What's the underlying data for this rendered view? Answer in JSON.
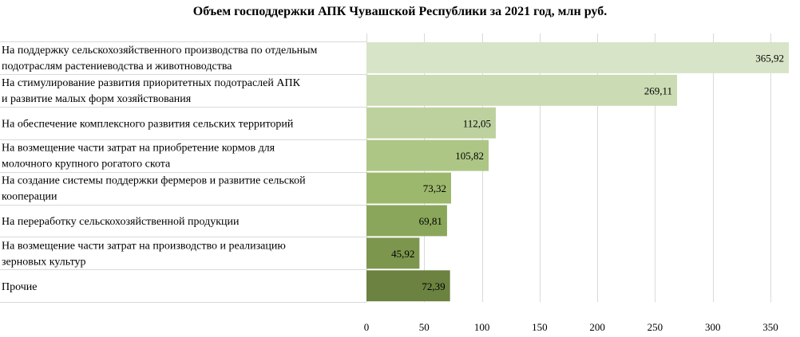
{
  "chart_data": {
    "type": "bar",
    "orientation": "horizontal",
    "title": "Объем господдержки АПК Чувашской Республики за 2021 год, млн руб.",
    "xlabel": "",
    "ylabel": "",
    "xlim": [
      0,
      365.92
    ],
    "x_ticks": [
      0,
      50,
      100,
      150,
      200,
      250,
      300,
      350
    ],
    "grid": true,
    "legend": "none",
    "categories": [
      [
        "На поддержку сельскохозяйственного производства по отдельным",
        "подотраслям растениеводства и животноводства"
      ],
      [
        "На стимулирование развития приоритетных подотраслей АПК",
        "и развитие малых форм хозяйствования"
      ],
      [
        "На обеспечение комплексного развития сельских территорий"
      ],
      [
        "На возмещение части затрат на приобретение кормов для",
        "молочного крупного рогатого скота"
      ],
      [
        "На создание системы поддержки фермеров и развитие сельской",
        "кооперации"
      ],
      [
        "На переработку сельскохозяйственной продукции"
      ],
      [
        "На возмещение части затрат на производство и реализацию",
        "зерновых культур"
      ],
      [
        "Прочие"
      ]
    ],
    "values": [
      365.92,
      269.11,
      112.05,
      105.82,
      73.32,
      69.81,
      45.92,
      72.39
    ],
    "value_labels": [
      "365,92",
      "269,11",
      "112,05",
      "105,82",
      "73,32",
      "69,81",
      "45,92",
      "72,39"
    ],
    "colors": [
      "#d8e4c8",
      "#cbdbb3",
      "#bdd19f",
      "#adc686",
      "#9cb86d",
      "#8aa65a",
      "#7c964e",
      "#6b8240"
    ]
  }
}
